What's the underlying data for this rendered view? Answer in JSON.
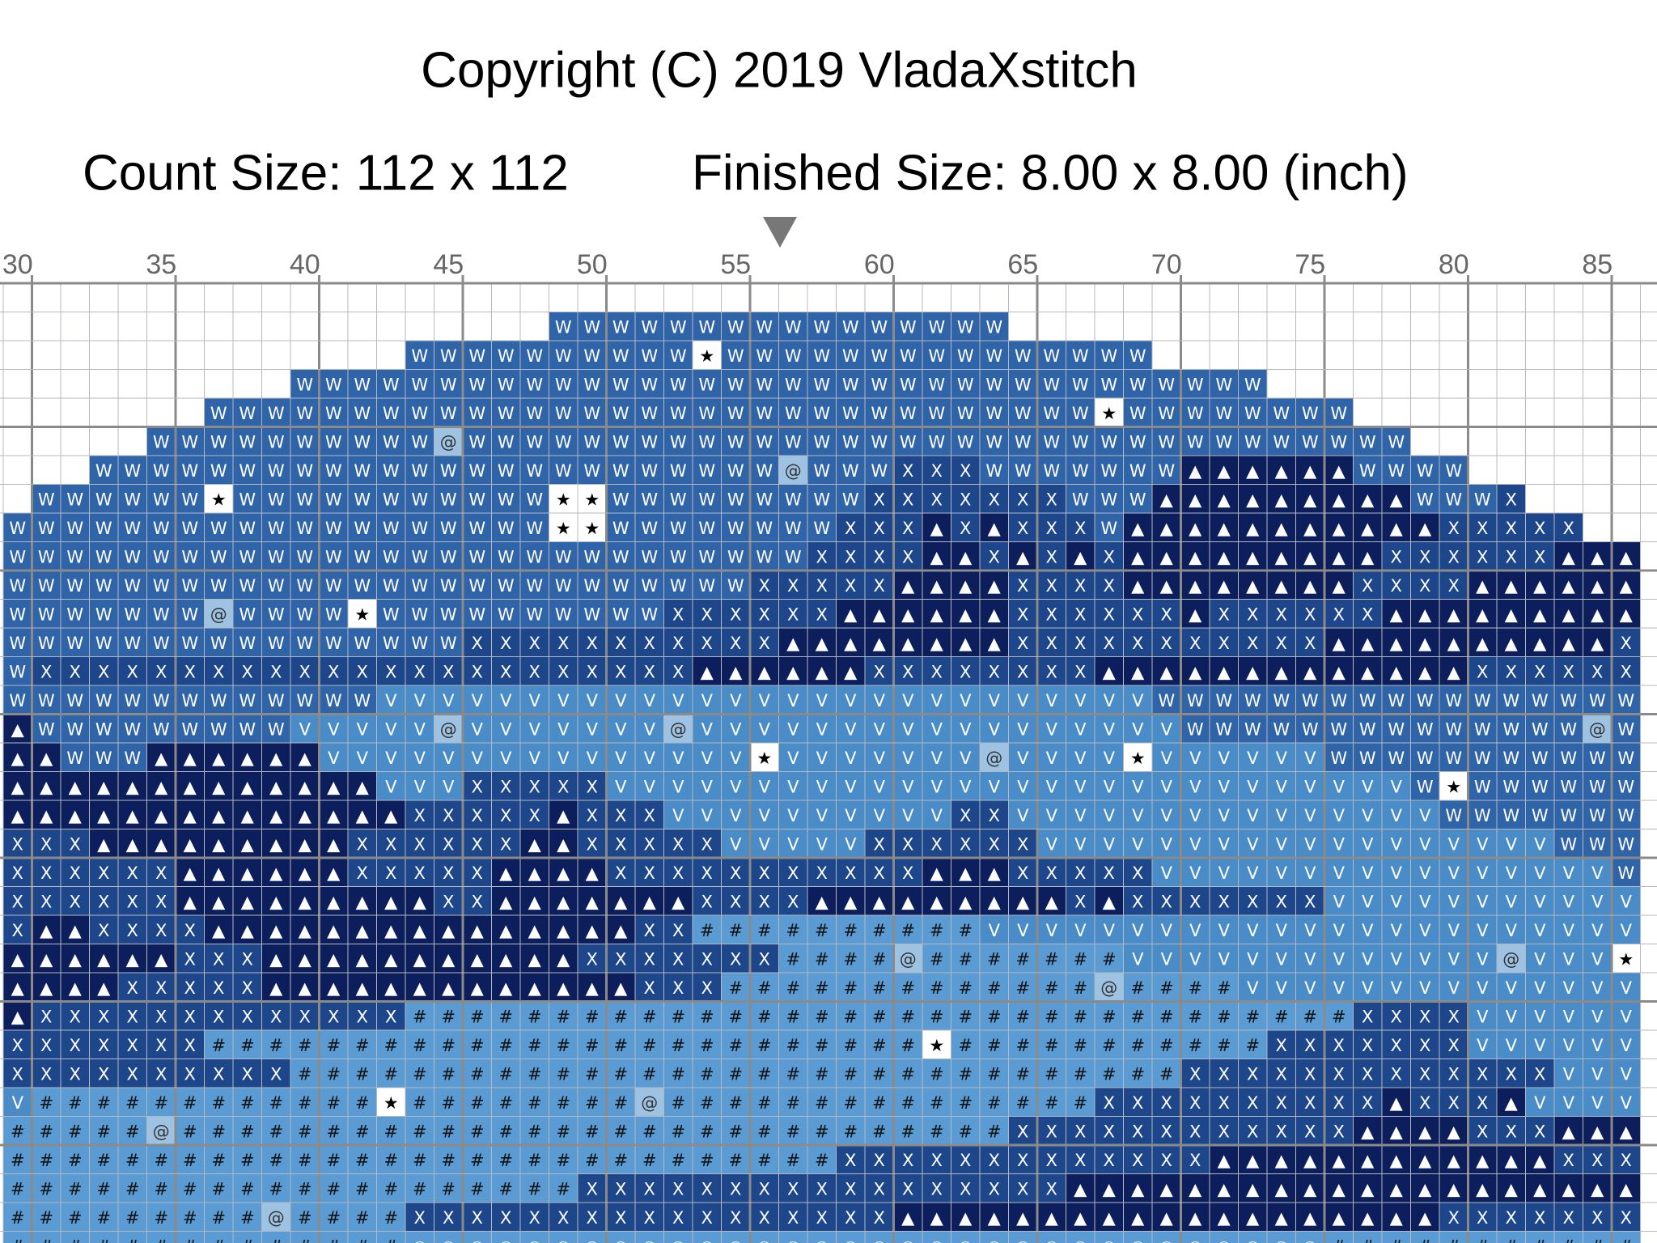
{
  "header": {
    "copyright": "Copyright (C) 2019 VladaXstitch",
    "count_size": "Count Size: 112 x 112",
    "finished_size": "Finished Size: 8.00 x 8.00 (inch)"
  },
  "ruler": {
    "labels": [
      30,
      35,
      40,
      45,
      50,
      55,
      60,
      65,
      70,
      75,
      80,
      85
    ]
  },
  "pattern": {
    "palette": {
      " ": {
        "fill": "#ffffff",
        "ink": "#000000"
      },
      "W": {
        "fill": "#2f64a8",
        "ink": "#ffffff"
      },
      "X": {
        "fill": "#1d468b",
        "ink": "#ffffff"
      },
      "▲": {
        "fill": "#0c1f5c",
        "ink": "#ffffff"
      },
      "V": {
        "fill": "#4a8cc7",
        "ink": "#ffffff"
      },
      "#": {
        "fill": "#5b9bd3",
        "ink": "#111111"
      },
      "@": {
        "fill": "#9ec2e2",
        "ink": "#333333"
      },
      "★": {
        "fill": "#ffffff",
        "ink": "#000000"
      },
      "○": {
        "fill": "#5b9bd3",
        "ink": "#e8f0f8"
      }
    },
    "rows": [
      "                                                         ",
      "                   WWWWWWWWWWWWWWWW                      ",
      "              WWWWWWWWWW★WWWWWWWWWWWWWWW                 ",
      "          WWWWWWWWWWWWWWWWWWWWWWWWWWWWWWWWWW             ",
      "       WWWWWWWWWWWWWWWWWWWWWWWWWWWWWWW★WWWWWWWW          ",
      "     WWWWWWWWWW@WWWWWWWWWWWWWWWWWWWWWWWWWWWWWWWWW        ",
      "   WWWWWWWWWWWWWWWWWWWWWWWW@WWWXXXWWWWWWW▲▲▲▲▲▲WWWW      ",
      " WWWWWW★WWWWWWWWWWW★★WWWWWWWWWXXXXXXXWWW▲▲▲▲▲▲▲▲▲WWWX    ",
      "WWWWWWWWWWWWWWWWWWW★★WWWWWWWWXXX▲X▲XXXW▲▲▲▲▲▲▲▲▲▲▲XXXXX  ",
      "WWWWWWWWWWWWWWWWWWWWWWWWWWWWXXXX▲▲X▲X▲X▲▲▲▲▲▲▲▲▲XXXXXX▲▲▲",
      "WWWWWWWWWWWWWWWWWWWWWWWWWWXXXXX▲▲▲▲XXXX▲▲▲▲▲▲▲▲XXXX▲▲▲▲▲▲",
      "WWWWWWW@WWWW★WWWWWWWWWWXXXXXX▲▲▲▲▲▲XXXXXX▲XXXXXX▲▲▲▲▲▲▲▲▲",
      "WWWWWWWWWWWWWWWWXXXXXXXXXXX▲▲▲▲▲▲▲▲XXXXXXXXXXX▲▲▲▲▲▲▲▲▲▲X",
      "WXXXXXXXXXXXXXXXXXXXXXXX▲▲▲▲▲▲XXXXXXXX▲▲▲▲▲▲▲▲▲▲▲▲▲XXXXXX",
      "WWWWWWWWWWWWWVVVVVVVVVVVVVVVVVVVVVVVVVVVWWWWWWWWWWWWWWWWW",
      "▲WWWWWWWWWVVVVV@VVVVVVV@VVVVVVVVVVVVVVVVVWWWWWWWWWWWWWW@W",
      "▲▲WWW▲▲▲▲▲▲VVVVVVVVVVVVVVV★VVVVVVV@VVVV★VVVVVVWWWWWWWWWWW",
      "▲▲▲▲▲▲▲▲▲▲▲▲▲VVVXXXXXVVVVVVVVVVVVVVVVVVVVVVVVVVVVW★WWWWWW",
      "▲▲▲▲▲▲▲▲▲▲▲▲▲▲XXXXX▲XXXVVVVVVVVVVXXVVVVVVVVVVVVVVVWWWWWWW",
      "XXX▲▲▲▲▲▲▲▲▲XXXXXX▲▲XXXXXVVVVVXXXXXXVVVVVVVVVVVVVVVVVVWWW",
      "XXXXXX▲▲▲▲▲▲XXXXX▲▲▲▲XXXXXXXXXXX▲▲▲XXXXXVVVVVVVVVVVVVVVVW",
      "XXXXXX▲▲▲▲▲▲▲▲▲XX▲▲▲▲▲▲▲XXXX▲▲▲▲▲▲▲▲▲X▲XXXXXXXVVVVVVVVVVV",
      "X▲▲XXXX▲▲▲▲▲▲▲▲▲▲▲▲▲▲▲XX##########VVVVVVVVVVVVVVVVVVVVVVV",
      "▲▲▲▲▲▲XXX▲▲▲▲▲▲▲▲▲▲▲XXXXXXX####@#######VVVVVVVVVVVVV@VVV★",
      "▲▲▲▲XXXXX▲▲▲▲▲▲▲▲▲▲▲▲▲XXX#############@####VVVVVVVVVVVVVV",
      "▲XXXXXXXXXXXXX#################################XXXXVVVVVV",
      "XXXXXXX#########################★###########XXXXXXXVVVVVV",
      "XXXXXXXXXX###############################XXXXXXXXXXXXXVVV",
      "V############★########@###############XXXXXXXXXX▲XXX▲VVVV",
      "#####@#############################XXXXXXXXXXXX▲▲▲▲XXX▲▲▲",
      "#############################XXXXXXXXXXXXX▲▲▲▲▲▲▲▲▲▲▲▲XXX",
      "####################XXXXXXXXXXXXXXXXX▲▲▲▲▲▲▲▲▲▲▲▲▲▲▲▲▲▲▲▲",
      "#########@####XXXXXXXXXXXXXXXXX▲▲▲▲▲▲▲▲▲▲▲▲▲▲▲▲▲▲▲XXXXXXX",
      "##############○○○○○○○○○○○○○○○○○○○○○○○○○○○○○○○○###########"
    ]
  }
}
